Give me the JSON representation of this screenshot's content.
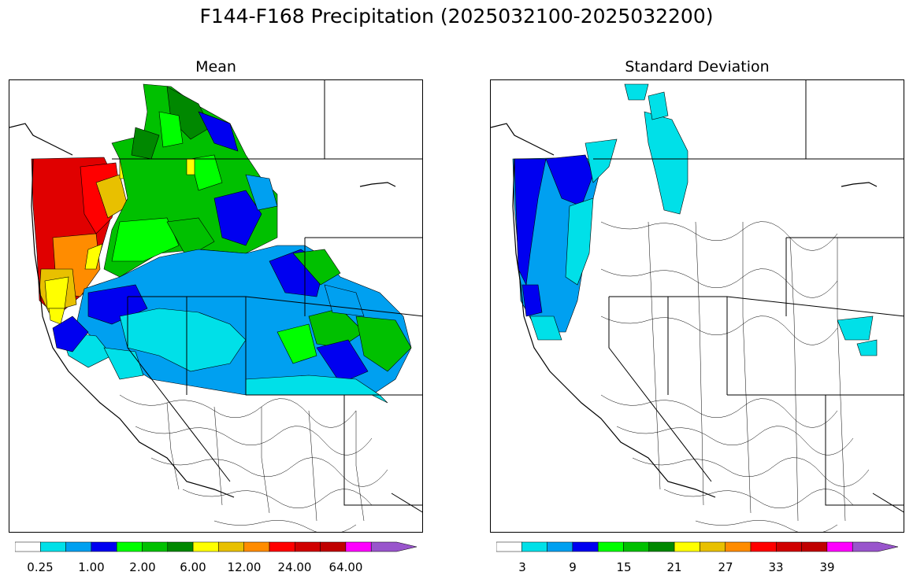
{
  "title": "F144-F168 Precipitation (2025032100-2025032200)",
  "panels": [
    {
      "subtitle": "Mean"
    },
    {
      "subtitle": "Standard Deviation"
    }
  ],
  "colors": {
    "white": "#ffffff",
    "cyan": "#00e0e8",
    "lightblue": "#00a0f0",
    "blue": "#0000f0",
    "lime": "#00ff00",
    "green": "#00c000",
    "darkgreen": "#008800",
    "yellow": "#ffff00",
    "gold": "#e8c000",
    "orange": "#ff8c00",
    "red": "#ff0000",
    "darkred": "#d00000",
    "crimson": "#c00000",
    "magenta": "#ff00ff",
    "purple": "#9955cc"
  },
  "colorbars": [
    {
      "labels": [
        "0.25",
        "1.00",
        "2.00",
        "6.00",
        "12.00",
        "24.00",
        "64.00"
      ]
    },
    {
      "labels": [
        "3",
        "9",
        "15",
        "21",
        "27",
        "33",
        "39"
      ]
    }
  ]
}
